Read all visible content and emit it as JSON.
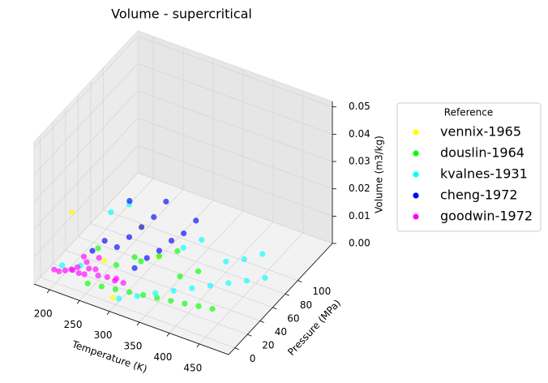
{
  "chart_data": {
    "type": "scatter3d",
    "title": "Volume - supercritical",
    "xlabel": "Temperature (K)",
    "ylabel": "Pressure (MPa)",
    "zlabel": "Volume (m3/kg)",
    "xlim": [
      174,
      499
    ],
    "ylim": [
      -10,
      155
    ],
    "zlim": [
      0,
      0.052
    ],
    "xticks": [
      200,
      250,
      300,
      350,
      400,
      450
    ],
    "yticks": [
      0,
      20,
      40,
      60,
      80,
      100
    ],
    "zticks": [
      {
        "value": 0,
        "label": "0.00"
      },
      {
        "value": 0.01,
        "label": "0.01"
      },
      {
        "value": 0.02,
        "label": "0.02"
      },
      {
        "value": 0.03,
        "label": "0.03"
      },
      {
        "value": 0.04,
        "label": "0.04"
      },
      {
        "value": 0.05,
        "label": "0.05"
      }
    ],
    "grid": true,
    "legend_title": "Reference",
    "legend_position": "right",
    "series": [
      {
        "name": "vennix-1965",
        "color": "#ffff00",
        "x": [
          195,
          290,
          330,
          280,
          260
        ],
        "y": [
          30,
          5,
          40,
          60,
          20
        ],
        "z": [
          0.018,
          0.0005,
          0.01,
          0.012,
          0.008
        ]
      },
      {
        "name": "douslin-1964",
        "color": "#00ff00",
        "x": [
          250,
          270,
          290,
          310,
          330,
          350,
          370,
          390,
          410,
          430,
          300,
          320,
          340,
          280,
          300,
          260,
          360,
          380
        ],
        "y": [
          3,
          6,
          9,
          12,
          15,
          18,
          21,
          24,
          27,
          30,
          40,
          50,
          60,
          20,
          30,
          10,
          45,
          55
        ],
        "z": [
          0.003,
          0.0028,
          0.0026,
          0.0024,
          0.0022,
          0.002,
          0.0018,
          0.0016,
          0.0015,
          0.0014,
          0.006,
          0.007,
          0.008,
          0.008,
          0.01,
          0.015,
          0.004,
          0.005
        ]
      },
      {
        "name": "kvalnes-1931",
        "color": "#00ffff",
        "x": [
          300,
          320,
          340,
          360,
          380,
          400,
          420,
          440,
          460,
          400,
          420,
          440,
          350,
          370,
          250,
          270,
          200,
          220
        ],
        "y": [
          5,
          15,
          25,
          35,
          45,
          55,
          65,
          75,
          85,
          80,
          90,
          100,
          60,
          70,
          40,
          50,
          10,
          20
        ],
        "z": [
          0.001,
          0.001,
          0.0012,
          0.0012,
          0.0013,
          0.0013,
          0.0014,
          0.0014,
          0.0015,
          0.004,
          0.004,
          0.005,
          0.01,
          0.012,
          0.02,
          0.022,
          0.004,
          0.003
        ]
      },
      {
        "name": "cheng-1972",
        "color": "#0000ff",
        "x": [
          240,
          250,
          260,
          270,
          280,
          290,
          300,
          310,
          320,
          330,
          340,
          260,
          300,
          350
        ],
        "y": [
          20,
          30,
          40,
          50,
          60,
          70,
          30,
          40,
          50,
          60,
          70,
          60,
          80,
          80
        ],
        "z": [
          0.01,
          0.012,
          0.008,
          0.01,
          0.012,
          0.014,
          0.006,
          0.008,
          0.009,
          0.011,
          0.012,
          0.02,
          0.018,
          0.015
        ]
      },
      {
        "name": "goodwin-1972",
        "color": "#ff00ff",
        "x": [
          195,
          200,
          205,
          210,
          215,
          220,
          225,
          230,
          235,
          240,
          250,
          260,
          270,
          280,
          290,
          300,
          210,
          230
        ],
        "y": [
          2,
          5,
          10,
          15,
          20,
          30,
          3,
          8,
          12,
          25,
          5,
          10,
          15,
          20,
          8,
          12,
          35,
          40
        ],
        "z": [
          0.004,
          0.003,
          0.0025,
          0.002,
          0.002,
          0.0018,
          0.006,
          0.004,
          0.003,
          0.002,
          0.008,
          0.005,
          0.004,
          0.003,
          0.006,
          0.005,
          0.0018,
          0.0017
        ]
      }
    ]
  }
}
